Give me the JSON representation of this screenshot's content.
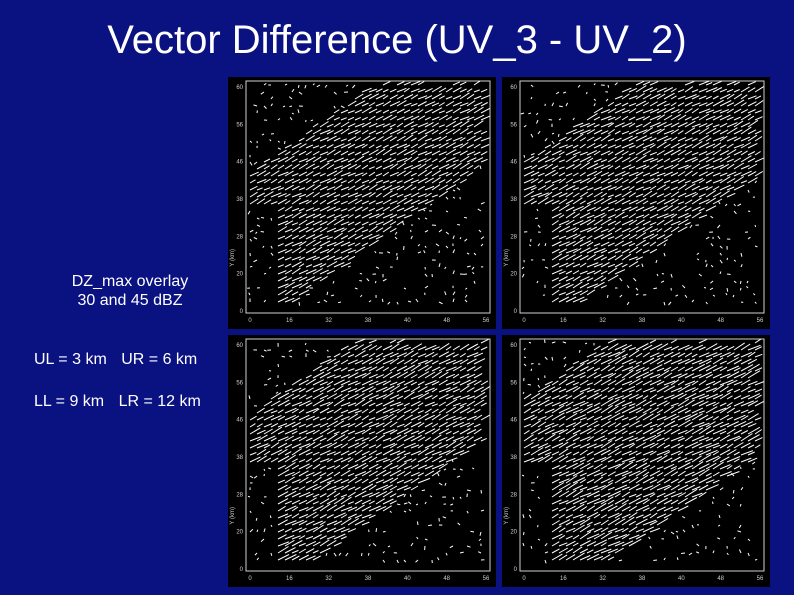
{
  "title": "Vector Difference (UV_3 - UV_2)",
  "caption": {
    "line1": "DZ_max overlay",
    "line2": "30 and 45 dBZ"
  },
  "legend": {
    "ul": "UL = 3 km",
    "ur": "UR = 6 km",
    "ll": "LL = 9 km",
    "lr": "LR = 12 km"
  },
  "panels": [
    {
      "id": "UL",
      "density": 0.55
    },
    {
      "id": "UR",
      "density": 0.65
    },
    {
      "id": "LL",
      "density": 0.7
    },
    {
      "id": "LR",
      "density": 0.85
    }
  ],
  "axis": {
    "x_ticks": [
      "0",
      "16",
      "32",
      "38",
      "40",
      "48",
      "56"
    ],
    "y_ticks": [
      "0",
      "20",
      "28",
      "38",
      "46",
      "56",
      "60"
    ],
    "y_label": "Y (km)"
  }
}
